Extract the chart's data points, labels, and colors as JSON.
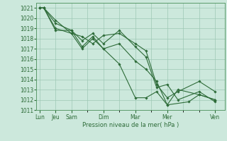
{
  "xlabel": "Pression niveau de la mer( hPa )",
  "bg_color": "#cce8dc",
  "grid_color": "#9dc8b4",
  "line_color": "#2d6b38",
  "spine_color": "#5a9a6a",
  "ylim": [
    1011,
    1021.5
  ],
  "yticks": [
    1011,
    1012,
    1013,
    1014,
    1015,
    1016,
    1017,
    1018,
    1019,
    1020,
    1021
  ],
  "day_ticks_x": [
    0.0,
    0.75,
    1.5,
    3.0,
    4.5,
    6.0,
    8.25
  ],
  "day_labels": [
    "Lun",
    "Jeu",
    "Sam",
    "Dim",
    "Mar",
    "Mer",
    "Ven"
  ],
  "series": [
    {
      "x": [
        0.0,
        0.2,
        0.75,
        1.5,
        2.0,
        2.5,
        3.0,
        3.75,
        4.5,
        5.0,
        5.5,
        6.0,
        6.5,
        7.5,
        8.25
      ],
      "y": [
        1021.0,
        1021.0,
        1019.8,
        1018.5,
        1018.2,
        1017.5,
        1018.3,
        1018.5,
        1017.5,
        1016.8,
        1013.5,
        1012.2,
        1012.8,
        1013.8,
        1012.8
      ]
    },
    {
      "x": [
        0.0,
        0.2,
        0.75,
        1.5,
        2.0,
        2.5,
        3.0,
        3.75,
        4.5,
        5.0,
        5.5,
        6.0,
        6.5,
        7.5,
        8.25
      ],
      "y": [
        1021.0,
        1021.0,
        1018.8,
        1018.8,
        1017.8,
        1018.5,
        1017.5,
        1018.8,
        1017.2,
        1016.2,
        1013.2,
        1013.5,
        1012.0,
        1012.8,
        1011.8
      ]
    },
    {
      "x": [
        0.0,
        0.2,
        0.75,
        1.5,
        2.0,
        2.5,
        3.0,
        3.75,
        4.5,
        5.0,
        5.5,
        6.0,
        6.5,
        7.5,
        8.25
      ],
      "y": [
        1021.0,
        1021.0,
        1019.5,
        1018.8,
        1017.2,
        1018.2,
        1017.0,
        1017.5,
        1015.8,
        1015.0,
        1013.8,
        1011.5,
        1013.0,
        1012.5,
        1012.0
      ]
    },
    {
      "x": [
        0.0,
        0.2,
        0.75,
        1.5,
        2.0,
        2.5,
        3.0,
        3.75,
        4.5,
        5.0,
        5.5,
        6.0,
        7.0,
        7.5,
        8.25
      ],
      "y": [
        1021.0,
        1021.0,
        1019.0,
        1018.5,
        1017.0,
        1018.0,
        1017.0,
        1015.5,
        1012.2,
        1012.2,
        1012.8,
        1011.5,
        1011.8,
        1012.5,
        1012.0
      ]
    }
  ]
}
